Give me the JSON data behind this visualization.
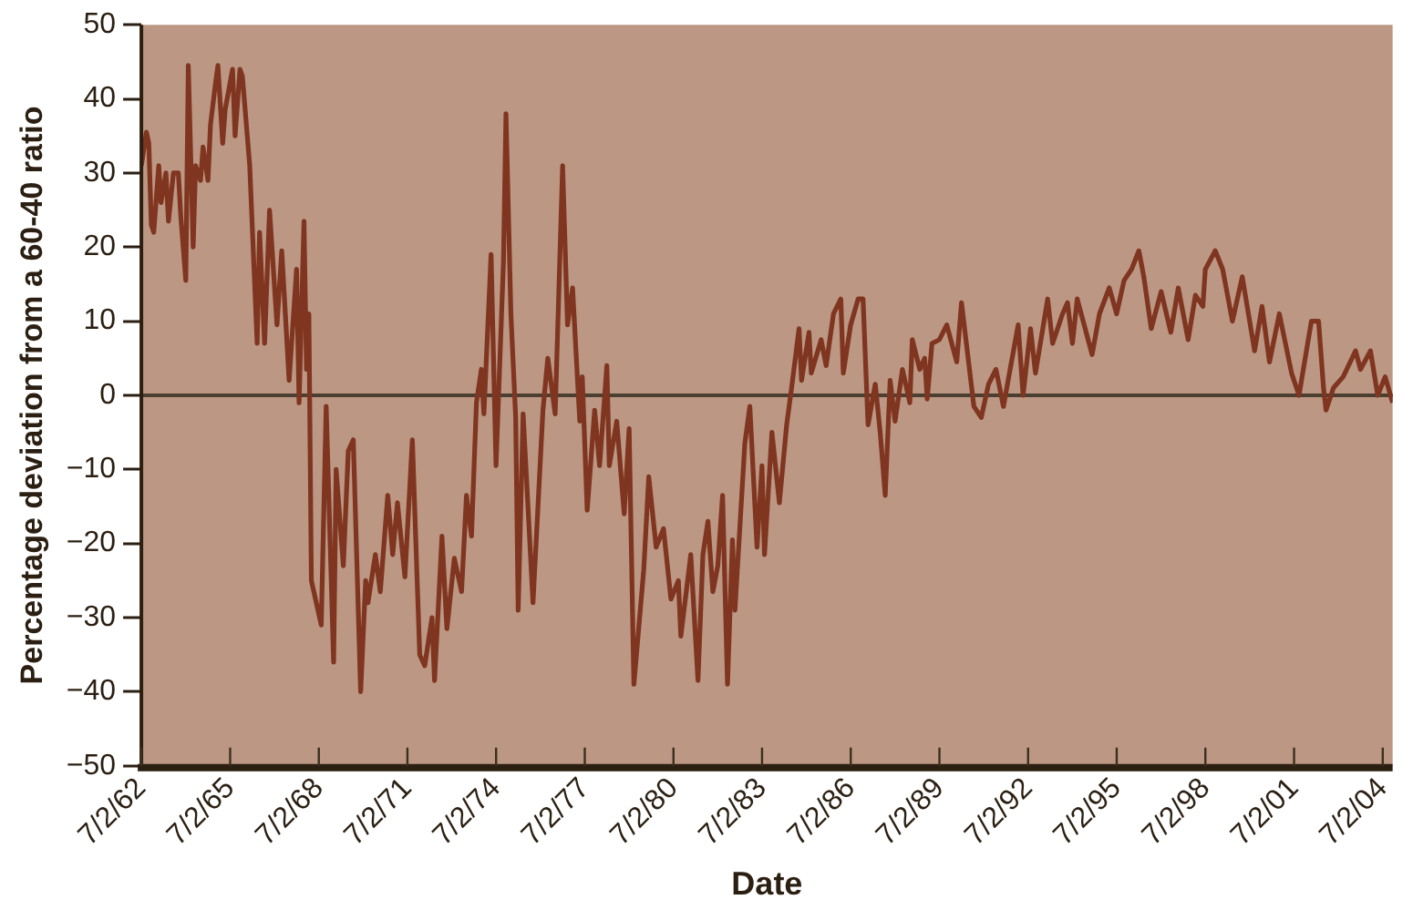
{
  "chart_data": {
    "type": "line",
    "xlabel": "Date",
    "ylabel": "Percentage deviation from a 60-40 ratio",
    "x": [
      "1962-07",
      "1962-09",
      "1962-10",
      "1962-11",
      "1962-12",
      "1963-02",
      "1963-03",
      "1963-05",
      "1963-06",
      "1963-08",
      "1963-10",
      "1963-11",
      "1964-01",
      "1964-02",
      "1964-04",
      "1964-05",
      "1964-07",
      "1964-08",
      "1964-10",
      "1964-11",
      "1965-01",
      "1965-02",
      "1965-04",
      "1965-05",
      "1965-08",
      "1965-09",
      "1965-11",
      "1965-12",
      "1966-03",
      "1966-06",
      "1966-07",
      "1966-09",
      "1966-11",
      "1967-02",
      "1967-04",
      "1967-07",
      "1967-10",
      "1967-11",
      "1968-01",
      "1968-02",
      "1968-03",
      "1968-04",
      "1968-08",
      "1968-10",
      "1969-01",
      "1969-02",
      "1969-05",
      "1969-07",
      "1969-09",
      "1969-12",
      "1970-02",
      "1970-03",
      "1970-06",
      "1970-08",
      "1970-11",
      "1971-01",
      "1971-03",
      "1971-06",
      "1971-09",
      "1971-12",
      "1972-02",
      "1972-05",
      "1972-06",
      "1972-09",
      "1972-11",
      "1973-02",
      "1973-05",
      "1973-07",
      "1973-09",
      "1973-11",
      "1974-01",
      "1974-02",
      "1974-05",
      "1974-07",
      "1974-10",
      "1974-11",
      "1975-01",
      "1975-03",
      "1975-04",
      "1975-06",
      "1975-10",
      "1976-02",
      "1976-04",
      "1976-07",
      "1976-10",
      "1976-12",
      "1977-02",
      "1977-05",
      "1977-06",
      "1977-08",
      "1977-11",
      "1978-01",
      "1978-04",
      "1978-05",
      "1978-08",
      "1978-11",
      "1979-01",
      "1979-03",
      "1979-07",
      "1979-09",
      "1979-12",
      "1980-03",
      "1980-06",
      "1980-09",
      "1980-10",
      "1981-02",
      "1981-05",
      "1981-07",
      "1981-09",
      "1981-11",
      "1982-01",
      "1982-03",
      "1982-05",
      "1982-07",
      "1982-08",
      "1982-12",
      "1983-02",
      "1983-05",
      "1983-07",
      "1983-08",
      "1983-11",
      "1984-02",
      "1984-05",
      "1984-07",
      "1984-10",
      "1984-11",
      "1985-02",
      "1985-03",
      "1985-07",
      "1985-09",
      "1985-12",
      "1986-03",
      "1986-04",
      "1986-07",
      "1986-10",
      "1986-12",
      "1987-02",
      "1987-05",
      "1987-07",
      "1987-09",
      "1987-11",
      "1988-01",
      "1988-04",
      "1988-07",
      "1988-08",
      "1988-11",
      "1989-01",
      "1989-02",
      "1989-04",
      "1989-07",
      "1989-10",
      "1990-02",
      "1990-04",
      "1990-09",
      "1990-12",
      "1991-03",
      "1991-06",
      "1991-09",
      "1992-03",
      "1992-05",
      "1992-08",
      "1992-10",
      "1993-03",
      "1993-05",
      "1993-09",
      "1993-11",
      "1994-01",
      "1994-03",
      "1994-09",
      "1994-12",
      "1995-04",
      "1995-07",
      "1995-10",
      "1996-01",
      "1996-04",
      "1996-06",
      "1996-09",
      "1997-01",
      "1997-05",
      "1997-08",
      "1997-12",
      "1998-03",
      "1998-06",
      "1998-07",
      "1998-11",
      "1999-02",
      "1999-06",
      "1999-10",
      "2000-03",
      "2000-06",
      "2000-09",
      "2001-01",
      "2001-06",
      "2001-09",
      "2002-02",
      "2002-05",
      "2002-07",
      "2002-08",
      "2002-11",
      "2003-03",
      "2003-08",
      "2003-10",
      "2004-02",
      "2004-05",
      "2004-08",
      "2004-11"
    ],
    "series": [
      {
        "color": "#7f3520",
        "values": [
          31,
          35.5,
          34,
          23,
          22,
          31,
          26,
          30,
          23.5,
          30,
          30,
          24,
          15.5,
          44.5,
          20,
          31,
          29,
          33.5,
          29,
          36.5,
          42,
          44.5,
          34,
          38.5,
          44,
          35,
          44,
          43,
          31,
          7,
          22,
          7,
          25,
          9.5,
          19.5,
          2,
          17,
          -1,
          23.5,
          3.5,
          11,
          -25,
          -31,
          -1.5,
          -36,
          -10,
          -23,
          -7.5,
          -6,
          -40,
          -25,
          -28,
          -21.5,
          -26.5,
          -13.5,
          -21.5,
          -14.5,
          -24.5,
          -6,
          -35,
          -36.5,
          -30,
          -38.5,
          -19,
          -31.5,
          -22,
          -26.5,
          -13.5,
          -19,
          -1,
          3.5,
          -2.5,
          19,
          -9.5,
          18,
          38,
          11,
          -3,
          -29,
          -2.5,
          -28,
          -2,
          5,
          -2.5,
          31,
          9.5,
          14.5,
          -3.5,
          2.5,
          -15.5,
          -2,
          -9.5,
          4,
          -9.5,
          -3.5,
          -16,
          -4.5,
          -39,
          -23.5,
          -11,
          -20.5,
          -18,
          -27.5,
          -25,
          -32.5,
          -21.5,
          -38.5,
          -21.5,
          -17,
          -26.5,
          -23,
          -13.5,
          -39,
          -19.5,
          -29,
          -6.5,
          -1.5,
          -20.5,
          -9.5,
          -21.5,
          -5,
          -14.5,
          -4,
          1,
          9,
          2,
          8.5,
          3,
          7.5,
          4,
          11,
          13,
          3,
          9.5,
          13,
          13,
          -4,
          1.5,
          -5,
          -13.5,
          2,
          -3.5,
          3.5,
          -1,
          7.5,
          3.5,
          5,
          -0.5,
          7,
          7.5,
          9.5,
          4.5,
          12.5,
          -1.5,
          -3,
          1.5,
          3.5,
          -1.5,
          9.5,
          0,
          9,
          3,
          13,
          7,
          11,
          12.5,
          7,
          13,
          5.5,
          11,
          14.5,
          11,
          15.5,
          17,
          19.5,
          16,
          9,
          14,
          8.5,
          14.5,
          7.5,
          13.5,
          12,
          17,
          19.5,
          17,
          10,
          16,
          6,
          12,
          4.5,
          11,
          3,
          0,
          10,
          10,
          1,
          -2,
          1,
          2.5,
          6,
          3.5,
          6,
          0,
          2.5,
          -1
        ]
      }
    ],
    "xlim": [
      "1962-07",
      "2004-11"
    ],
    "xticks": [
      {
        "value": "1962-07-02",
        "label": "7/2/62"
      },
      {
        "value": "1965-07-02",
        "label": "7/2/65"
      },
      {
        "value": "1968-07-02",
        "label": "7/2/68"
      },
      {
        "value": "1971-07-02",
        "label": "7/2/71"
      },
      {
        "value": "1974-07-02",
        "label": "7/2/74"
      },
      {
        "value": "1977-07-02",
        "label": "7/2/77"
      },
      {
        "value": "1980-07-02",
        "label": "7/2/80"
      },
      {
        "value": "1983-07-02",
        "label": "7/2/83"
      },
      {
        "value": "1986-07-02",
        "label": "7/2/86"
      },
      {
        "value": "1989-07-02",
        "label": "7/2/89"
      },
      {
        "value": "1992-07-02",
        "label": "7/2/92"
      },
      {
        "value": "1995-07-02",
        "label": "7/2/95"
      },
      {
        "value": "1998-07-02",
        "label": "7/2/98"
      },
      {
        "value": "2001-07-02",
        "label": "7/2/01"
      },
      {
        "value": "2004-07-02",
        "label": "7/2/04"
      }
    ],
    "ylim": [
      -50,
      50
    ],
    "yticks": [
      {
        "value": -50,
        "label": "−50"
      },
      {
        "value": -40,
        "label": "−40"
      },
      {
        "value": -30,
        "label": "−30"
      },
      {
        "value": -20,
        "label": "−20"
      },
      {
        "value": -10,
        "label": "−10"
      },
      0,
      10,
      20,
      30,
      40,
      50
    ],
    "ref_lines": [
      {
        "axis": "y",
        "value": 0,
        "color": "#4a3f30"
      }
    ],
    "grid": false,
    "legend": false,
    "marker": "none",
    "line_style": "solid"
  }
}
